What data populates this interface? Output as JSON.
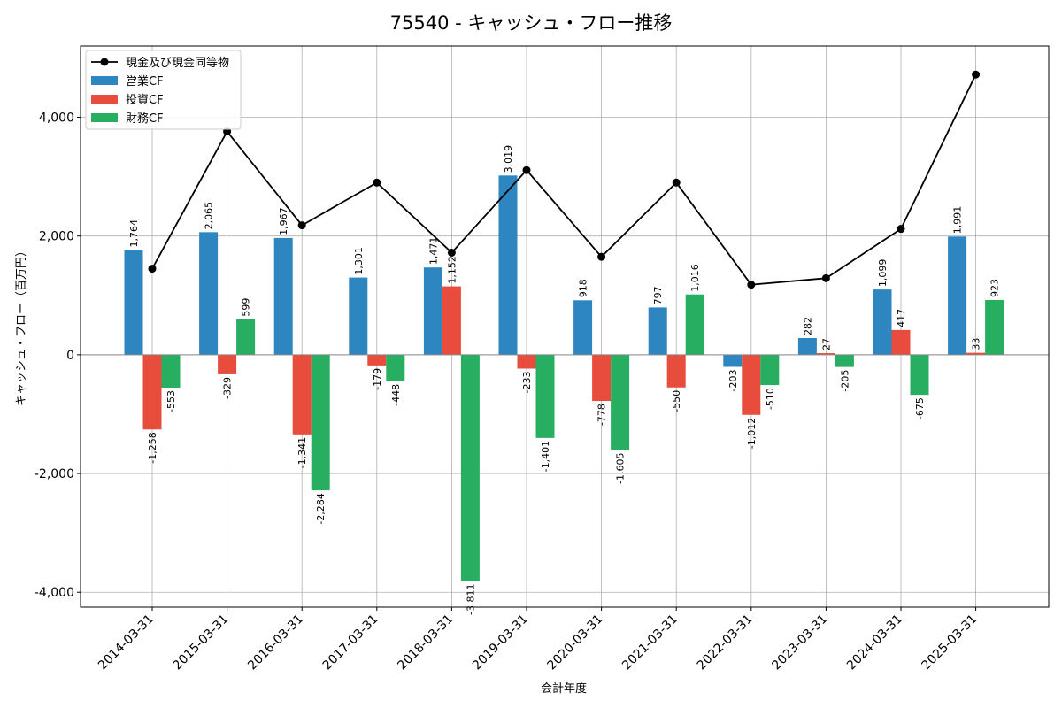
{
  "chart_data": {
    "type": "bar",
    "title": "75540 - キャッシュ・フロー推移",
    "xlabel": "会計年度",
    "ylabel": "キャッシュ・フロー（百万円）",
    "categories": [
      "2014-03-31",
      "2015-03-31",
      "2016-03-31",
      "2017-03-31",
      "2018-03-31",
      "2019-03-31",
      "2020-03-31",
      "2021-03-31",
      "2022-03-31",
      "2023-03-31",
      "2024-03-31",
      "2025-03-31"
    ],
    "ylim": [
      -4250,
      5200
    ],
    "yticks": [
      -4000,
      -2000,
      0,
      2000,
      4000
    ],
    "ytick_labels": [
      "-4,000",
      "-2,000",
      "0",
      "2,000",
      "4,000"
    ],
    "grid": true,
    "legend_position": "top-left",
    "series": [
      {
        "name": "営業CF",
        "type": "bar",
        "color": "#2e86c1",
        "values": [
          1764,
          2065,
          1967,
          1301,
          1471,
          3019,
          918,
          797,
          -203,
          282,
          1099,
          1991
        ],
        "labels": [
          "1,764",
          "2,065",
          "1,967",
          "1,301",
          "1,471",
          "3,019",
          "918",
          "797",
          "-203",
          "282",
          "1,099",
          "1,991"
        ]
      },
      {
        "name": "投資CF",
        "type": "bar",
        "color": "#e74c3c",
        "values": [
          -1258,
          -329,
          -1341,
          -179,
          1152,
          -233,
          -778,
          -550,
          -1012,
          27,
          417,
          33
        ],
        "labels": [
          "-1,258",
          "-329",
          "-1,341",
          "-179",
          "1,152",
          "-233",
          "-778",
          "-550",
          "-1,012",
          "27",
          "417",
          "33"
        ]
      },
      {
        "name": "財務CF",
        "type": "bar",
        "color": "#27ae60",
        "values": [
          -553,
          599,
          -2284,
          -448,
          -3811,
          -1401,
          -1605,
          1016,
          -510,
          -205,
          -675,
          923
        ],
        "labels": [
          "-553",
          "599",
          "-2,284",
          "-448",
          "-3,811",
          "-1,401",
          "-1,605",
          "1,016",
          "-510",
          "-205",
          "-675",
          "923"
        ]
      },
      {
        "name": "現金及び現金同等物",
        "type": "line",
        "color": "#000000",
        "values": [
          1450,
          3760,
          2180,
          2900,
          1720,
          3110,
          1650,
          2900,
          1180,
          1290,
          2120,
          4720
        ]
      }
    ]
  }
}
